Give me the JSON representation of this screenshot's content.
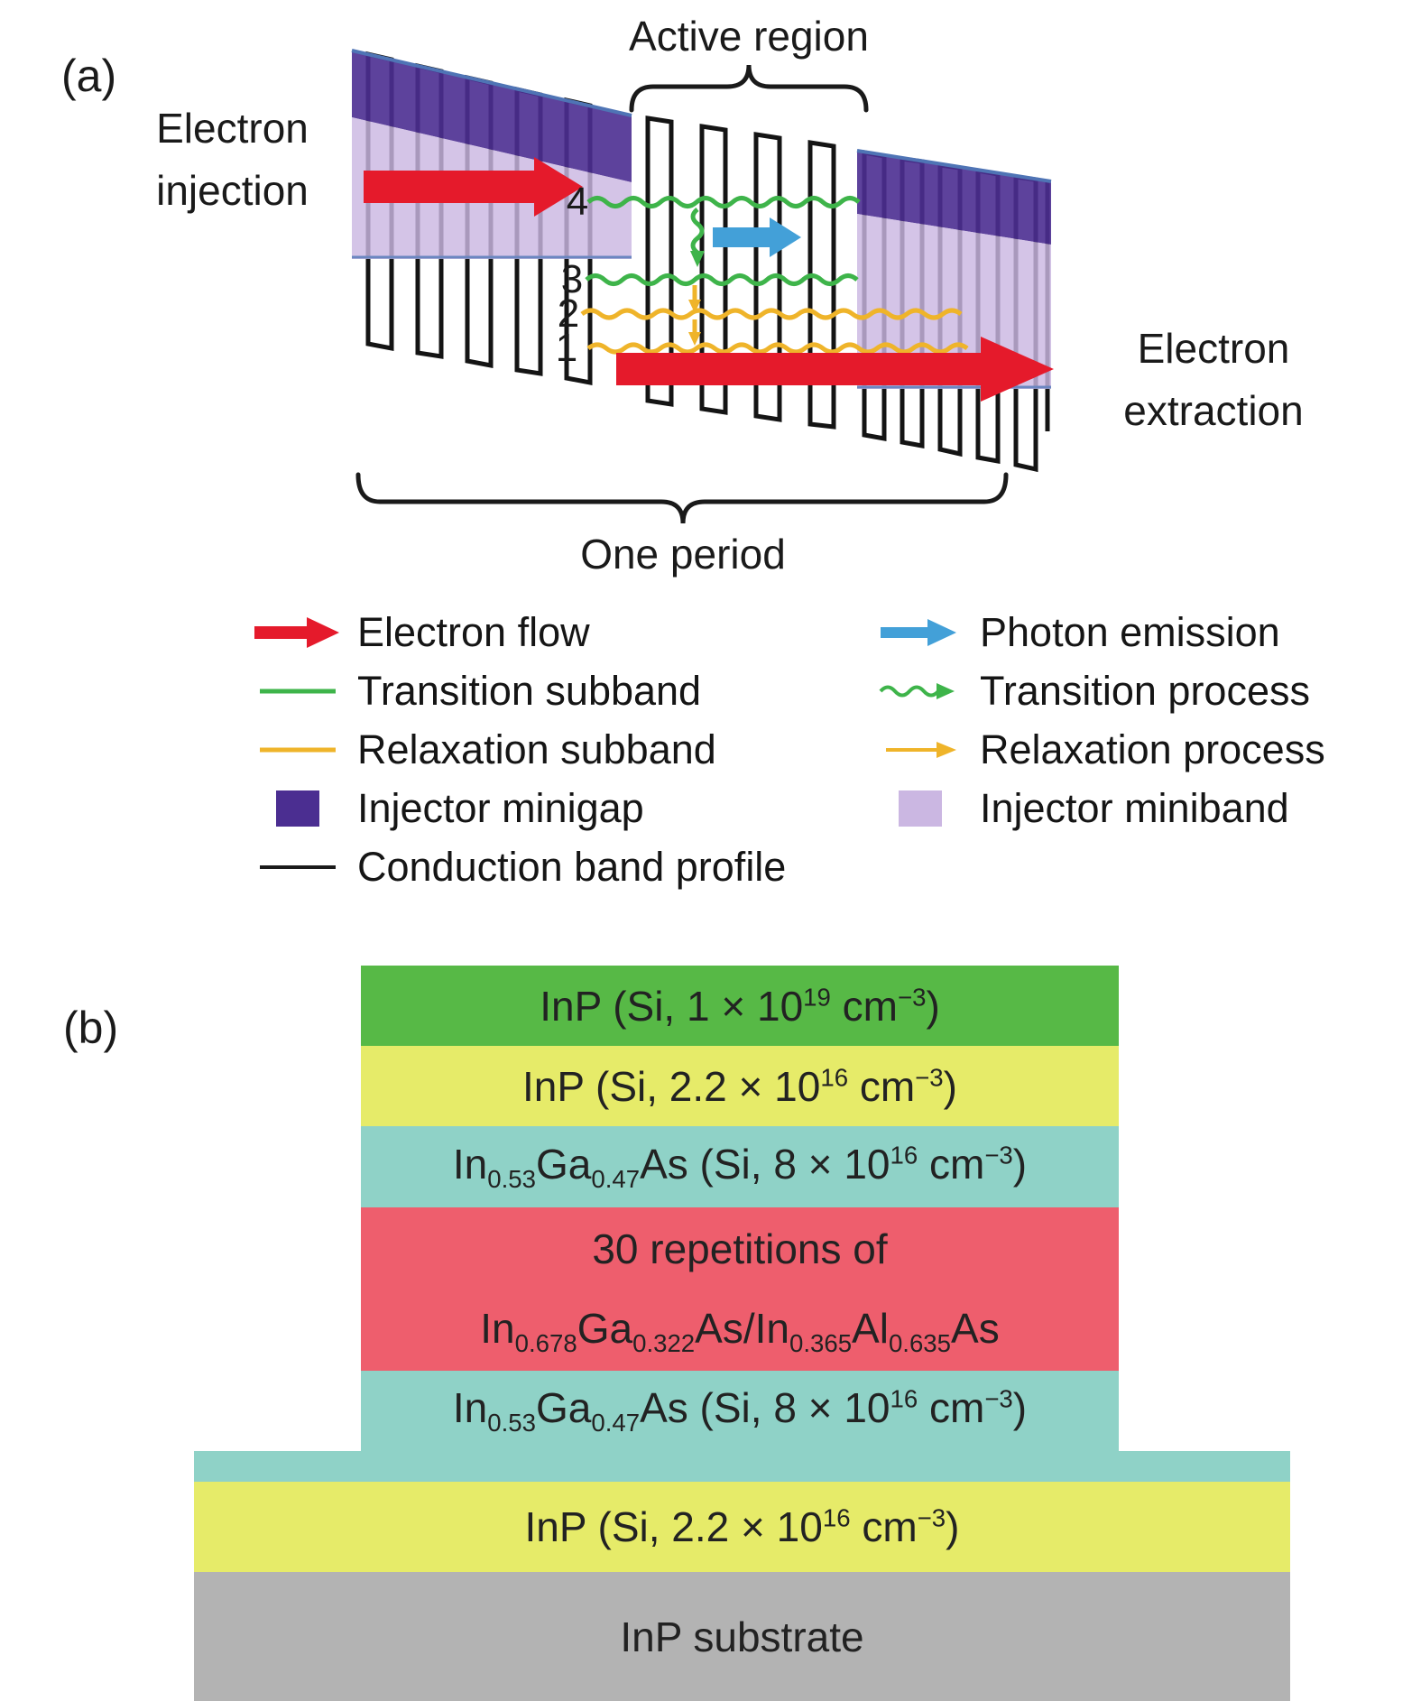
{
  "panel_a": {
    "label": "(a)",
    "active_region": "Active region",
    "one_period": "One period",
    "electron_injection": [
      "Electron",
      "injection"
    ],
    "electron_extraction": [
      "Electron",
      "extraction"
    ],
    "subband_numbers": [
      "4",
      "3",
      "2",
      "1"
    ],
    "colors": {
      "electron_flow": "#e51a2b",
      "photon_emission": "#43a0d8",
      "transition": "#3eb44a",
      "relaxation": "#efb42a",
      "injector_minigap": "#4b2e91",
      "injector_miniband": "#cbb7e2",
      "band_profile": "#1a1a1a"
    }
  },
  "legend": {
    "left": [
      {
        "icon": "red-arrow",
        "label": "Electron flow"
      },
      {
        "icon": "green-line",
        "label": "Transition subband"
      },
      {
        "icon": "yellow-line",
        "label": "Relaxation subband"
      },
      {
        "icon": "purple-square",
        "label": "Injector minigap"
      },
      {
        "icon": "black-line",
        "label": "Conduction band profile"
      }
    ],
    "right": [
      {
        "icon": "blue-arrow",
        "label": "Photon emission"
      },
      {
        "icon": "green-wavy-arrow",
        "label": "Transition process"
      },
      {
        "icon": "yellow-arrow",
        "label": "Relaxation process"
      },
      {
        "icon": "lavender-square",
        "label": "Injector miniband"
      }
    ]
  },
  "panel_b": {
    "label": "(b)",
    "layers": [
      {
        "name": "cap-layer",
        "color": "#57b946",
        "text_html": "InP (Si, 1 × 10<sup>19</sup> cm<sup>−3</sup>)"
      },
      {
        "name": "upper-cladding",
        "color": "#e6eb69",
        "text_html": "InP (Si, 2.2 × 10<sup>16</sup> cm<sup>−3</sup>)"
      },
      {
        "name": "upper-waveguide",
        "color": "#8fd2c7",
        "text_html": "In<sub>0.53</sub>Ga<sub>0.47</sub>As (Si, 8 × 10<sup>16</sup> cm<sup>−3</sup>)"
      },
      {
        "name": "active-core",
        "color": "#ee5e6d",
        "text_html": "30 repetitions of<br>In<sub>0.678</sub>Ga<sub>0.322</sub>As/In<sub>0.365</sub>Al<sub>0.635</sub>As"
      },
      {
        "name": "lower-waveguide",
        "color": "#8fd2c7",
        "text_html": "In<sub>0.53</sub>Ga<sub>0.47</sub>As (Si, 8 × 10<sup>16</sup> cm<sup>−3</sup>)"
      },
      {
        "name": "lower-waveguide-wide",
        "color": "#8fd2c7",
        "text_html": ""
      },
      {
        "name": "lower-cladding",
        "color": "#e6eb69",
        "text_html": "InP (Si, 2.2 × 10<sup>16</sup> cm<sup>−3</sup>)"
      },
      {
        "name": "substrate",
        "color": "#b3b3b3",
        "text_html": "InP substrate"
      }
    ]
  }
}
